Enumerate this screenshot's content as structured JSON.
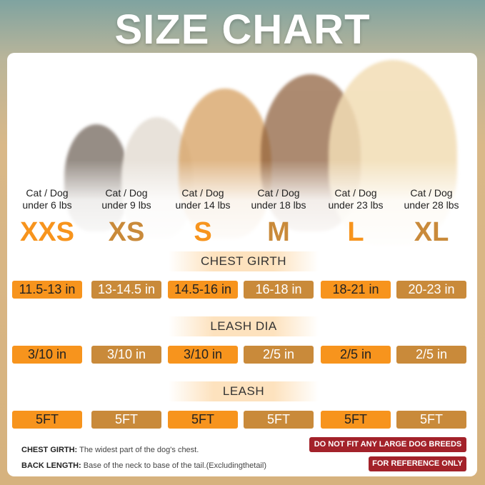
{
  "title": "SIZE CHART",
  "sizes": [
    {
      "label": "XXS",
      "weight_line1": "Cat / Dog",
      "weight_line2": "under 6 lbs",
      "chest": "11.5-13 in",
      "leash_dia": "3/10 in",
      "leash": "5FT"
    },
    {
      "label": "XS",
      "weight_line1": "Cat / Dog",
      "weight_line2": "under 9 lbs",
      "chest": "13-14.5 in",
      "leash_dia": "3/10 in",
      "leash": "5FT"
    },
    {
      "label": "S",
      "weight_line1": "Cat / Dog",
      "weight_line2": "under 14 lbs",
      "chest": "14.5-16 in",
      "leash_dia": "3/10 in",
      "leash": "5FT"
    },
    {
      "label": "M",
      "weight_line1": "Cat / Dog",
      "weight_line2": "under 18 lbs",
      "chest": "16-18 in",
      "leash_dia": "2/5 in",
      "leash": "5FT"
    },
    {
      "label": "L",
      "weight_line1": "Cat / Dog",
      "weight_line2": "under 23 lbs",
      "chest": "18-21 in",
      "leash_dia": "2/5 in",
      "leash": "5FT"
    },
    {
      "label": "XL",
      "weight_line1": "Cat / Dog",
      "weight_line2": "under 28 lbs",
      "chest": "20-23 in",
      "leash_dia": "2/5 in",
      "leash": "5FT"
    }
  ],
  "headers": {
    "chest": "CHEST GIRTH",
    "leash_dia": "LEASH DIA",
    "leash": "LEASH"
  },
  "notes": {
    "chest_label": "CHEST GIRTH:",
    "chest_text": "The widest part of the dog's chest.",
    "back_label": "BACK LENGTH:",
    "back_text": "Base of the neck to base of the tail.(Excludingthetail)"
  },
  "badges": {
    "large": "DO NOT FIT ANY LARGE DOG BREEDS",
    "reference": "FOR REFERENCE ONLY"
  },
  "colors": {
    "orange": "#f7941d",
    "tan": "#c98a3a",
    "badge": "#a3222a"
  }
}
